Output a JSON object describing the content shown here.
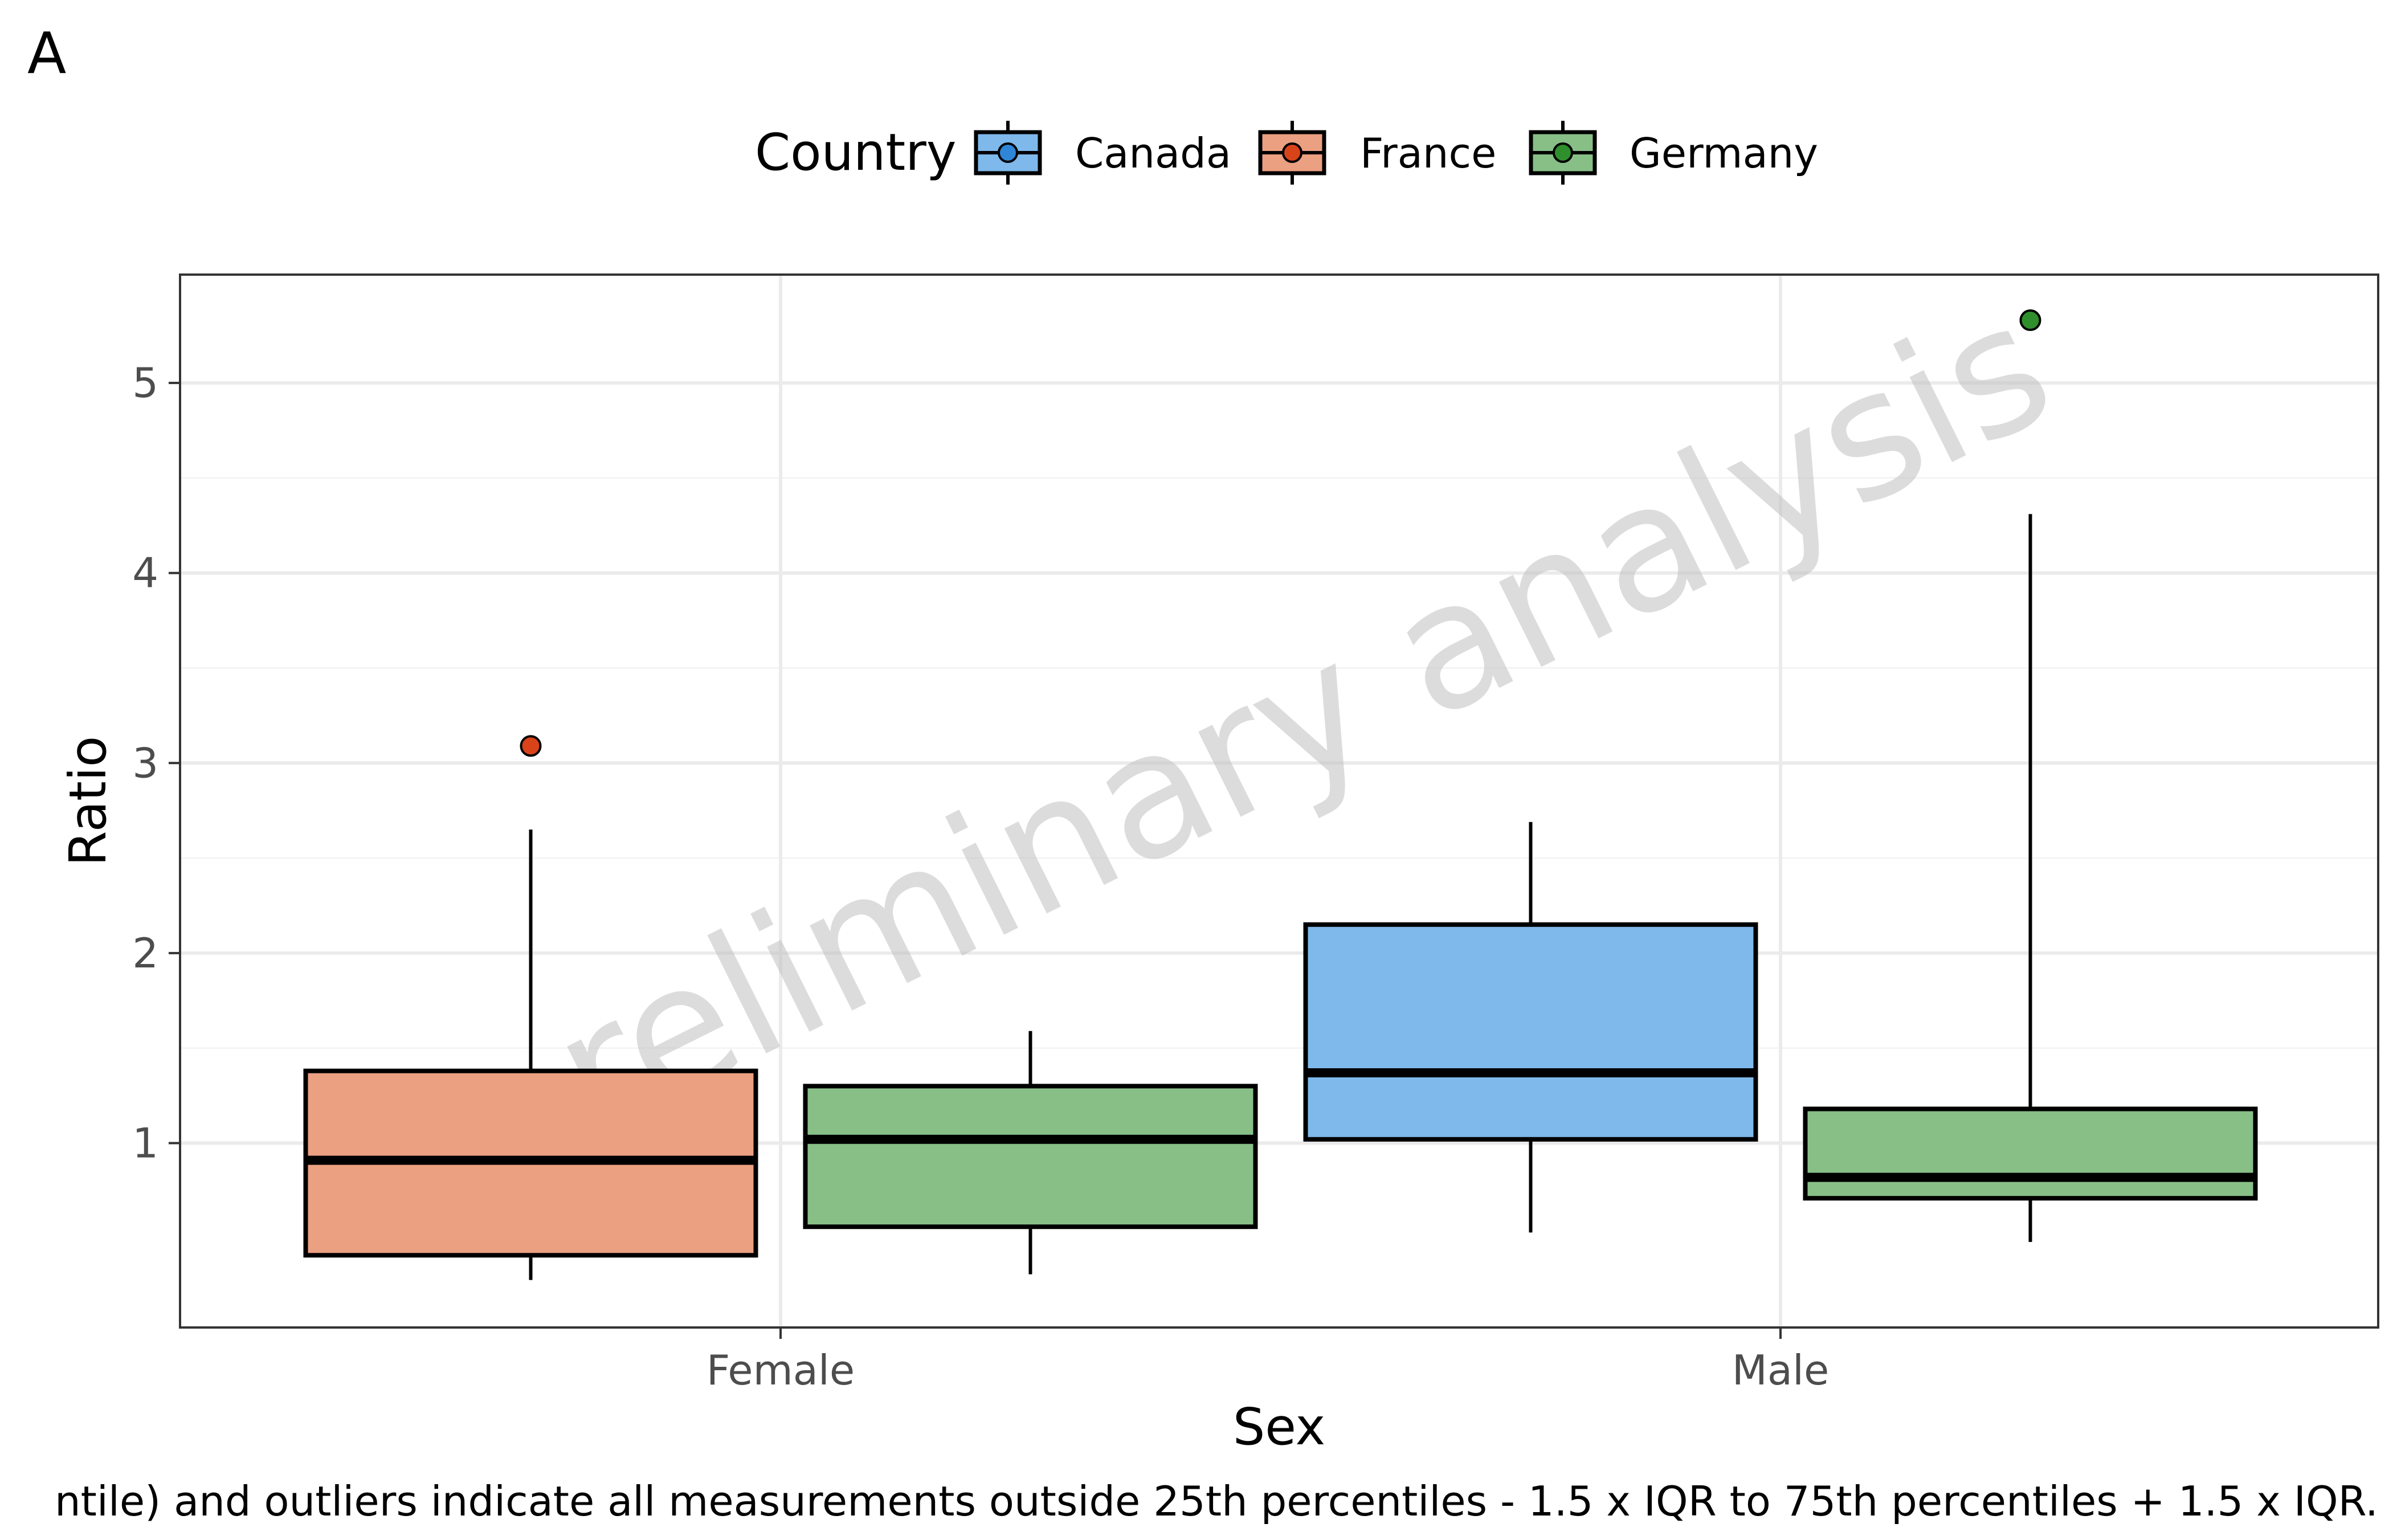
{
  "panel_tag": "A",
  "watermark": "preliminary analysis",
  "caption": "ntile) and outliers indicate all measurements outside 25th percentiles - 1.5 x IQR to 75th percentiles + 1.5 x IQR.",
  "legend": {
    "title": "Country",
    "placement": "top",
    "items": [
      {
        "label": "Canada",
        "fill": "#7fb8ea",
        "point": "#2f86d8"
      },
      {
        "label": "France",
        "fill": "#eba081",
        "point": "#d9431a"
      },
      {
        "label": "Germany",
        "fill": "#88bf87",
        "point": "#2f8f2c"
      }
    ]
  },
  "chart_data": {
    "type": "boxplot",
    "title": "",
    "xlabel": "Sex",
    "ylabel": "Ratio",
    "categories": [
      "Female",
      "Male"
    ],
    "ylim": [
      0.03,
      5.57
    ],
    "yticks": [
      1,
      2,
      3,
      4,
      5
    ],
    "grid": true,
    "series": [
      {
        "name": "Canada",
        "fill": "#7fb8ea",
        "point": "#2f86d8",
        "boxes": [
          null,
          {
            "min": 0.53,
            "q1": 1.02,
            "median": 1.37,
            "q3": 2.15,
            "max": 2.69,
            "outliers": []
          }
        ]
      },
      {
        "name": "France",
        "fill": "#eba081",
        "point": "#d9431a",
        "boxes": [
          {
            "min": 0.28,
            "q1": 0.41,
            "median": 0.91,
            "q3": 1.38,
            "max": 2.65,
            "outliers": [
              3.09
            ]
          },
          null
        ]
      },
      {
        "name": "Germany",
        "fill": "#88bf87",
        "point": "#2f8f2c",
        "boxes": [
          {
            "min": 0.31,
            "q1": 0.56,
            "median": 1.02,
            "q3": 1.3,
            "max": 1.59,
            "outliers": []
          },
          {
            "min": 0.48,
            "q1": 0.71,
            "median": 0.82,
            "q3": 1.18,
            "max": 4.31,
            "outliers": [
              5.33
            ]
          }
        ]
      }
    ]
  }
}
